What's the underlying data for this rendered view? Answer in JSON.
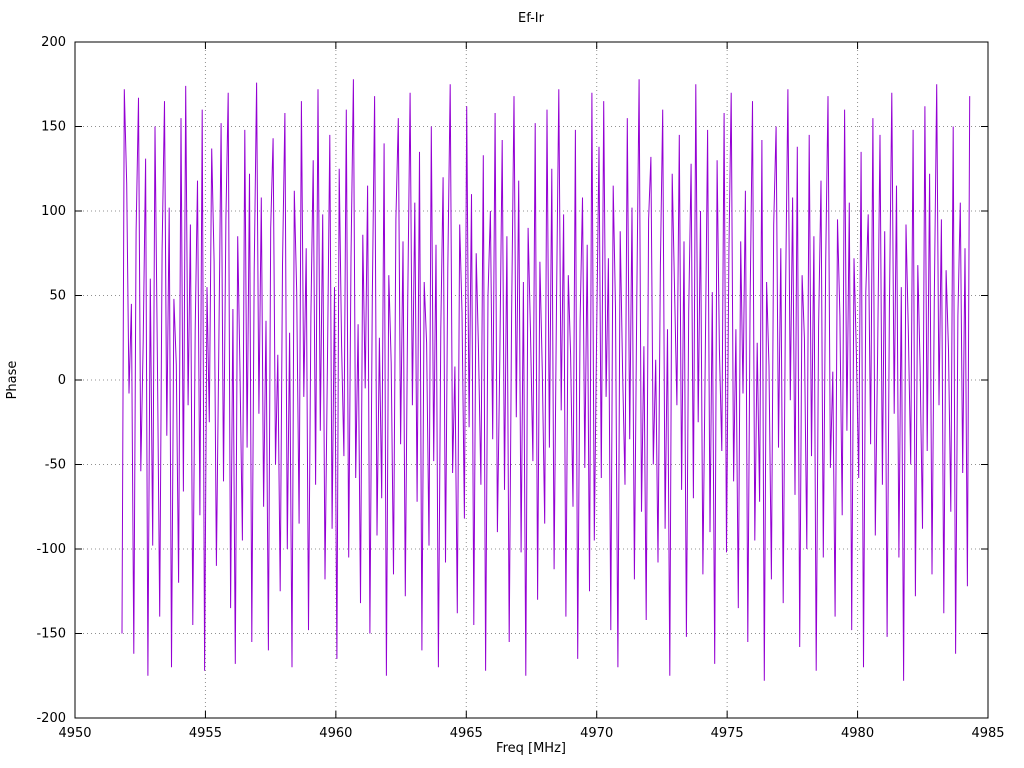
{
  "chart_data": {
    "type": "line",
    "title": "Ef-Ir",
    "xlabel": "Freq [MHz]",
    "ylabel": "Phase",
    "xlim": [
      4950,
      4985
    ],
    "ylim": [
      -200,
      200
    ],
    "xticks": [
      4950,
      4955,
      4960,
      4965,
      4970,
      4975,
      4980,
      4985
    ],
    "yticks": [
      -200,
      -150,
      -100,
      -50,
      0,
      50,
      100,
      150,
      200
    ],
    "grid": "dotted",
    "legend": "none",
    "series": [
      {
        "name": "Ef-Ir phase",
        "color": "#9400d3",
        "x_start": 4951.8,
        "x_end": 4984.3,
        "y_values": [
          -150,
          172,
          116,
          -8,
          45,
          -162,
          88,
          167,
          -54,
          23,
          131,
          -175,
          60,
          -98,
          150,
          12,
          -140,
          77,
          165,
          -33,
          102,
          -170,
          48,
          9,
          -120,
          155,
          -66,
          174,
          -15,
          92,
          -145,
          30,
          118,
          -80,
          160,
          -172,
          55,
          -25,
          137,
          70,
          -110,
          18,
          152,
          -60,
          95,
          170,
          -135,
          42,
          -168,
          85,
          5,
          -95,
          148,
          -40,
          122,
          -155,
          65,
          176,
          -20,
          108,
          -75,
          35,
          -160,
          90,
          143,
          -50,
          15,
          -125,
          68,
          158,
          -100,
          28,
          -170,
          112,
          52,
          -85,
          165,
          -10,
          78,
          -148,
          38,
          130,
          -62,
          172,
          -30,
          98,
          -118,
          8,
          145,
          -88,
          55,
          -165,
          125,
          20,
          -45,
          160,
          -105,
          72,
          178,
          -58,
          33,
          -132,
          86,
          -5,
          115,
          -150,
          48,
          168,
          -92,
          25,
          -70,
          140,
          -175,
          62,
          10,
          -115,
          95,
          155,
          -38,
          82,
          -128,
          45,
          170,
          -15,
          105,
          -72,
          135,
          -160,
          58,
          22,
          -98,
          150,
          -48,
          80,
          -170,
          30,
          120,
          -108,
          66,
          175,
          -55,
          8,
          -138,
          92,
          40,
          -82,
          162,
          -28,
          110,
          -145,
          75,
          18,
          -62,
          133,
          -172,
          50,
          100,
          -35,
          158,
          -90,
          12,
          142,
          -65,
          85,
          -155,
          38,
          168,
          -22,
          118,
          -102,
          58,
          -175,
          90,
          28,
          -48,
          152,
          -130,
          70,
          5,
          -85,
          160,
          -40,
          125,
          -112,
          45,
          172,
          -18,
          98,
          -140,
          62,
          15,
          -75,
          148,
          -165,
          35,
          108,
          -52,
          80,
          -125,
          170,
          -95,
          25,
          138,
          -58,
          165,
          -10,
          72,
          -148,
          115,
          42,
          -170,
          88,
          5,
          -62,
          155,
          -35,
          102,
          -118,
          48,
          178,
          -78,
          20,
          -142,
          95,
          132,
          -50,
          12,
          -108,
          68,
          160,
          -88,
          30,
          -175,
          122,
          55,
          -15,
          145,
          -65,
          82,
          -152,
          40,
          128,
          -70,
          175,
          -25,
          100,
          -115,
          10,
          148,
          -90,
          52,
          -168,
          130,
          18,
          -42,
          158,
          -102,
          75,
          170,
          -60,
          30,
          -135,
          82,
          -8,
          112,
          -155,
          45,
          165,
          -95,
          22,
          -72,
          142,
          -178,
          58,
          8,
          -118,
          92,
          150,
          -40,
          78,
          -132,
          48,
          172,
          -12,
          108,
          -68,
          138,
          -158,
          62,
          25,
          -100,
          145,
          -45,
          85,
          -172,
          32,
          118,
          -105,
          70,
          168,
          -52,
          5,
          -140,
          95,
          38,
          -80,
          160,
          -30,
          105,
          -148,
          72,
          15,
          -58,
          135,
          -170,
          52,
          98,
          -38,
          155,
          -92,
          15,
          145,
          -62,
          88,
          -152,
          42,
          170,
          -20,
          115,
          -105,
          55,
          -178,
          92,
          30,
          -50,
          148,
          -128,
          68,
          8,
          -88,
          162,
          -42,
          122,
          -115,
          48,
          175,
          -15,
          95,
          -138,
          65,
          18,
          -78,
          150,
          -162,
          38,
          105,
          -55,
          78,
          -122,
          168
        ]
      }
    ]
  }
}
